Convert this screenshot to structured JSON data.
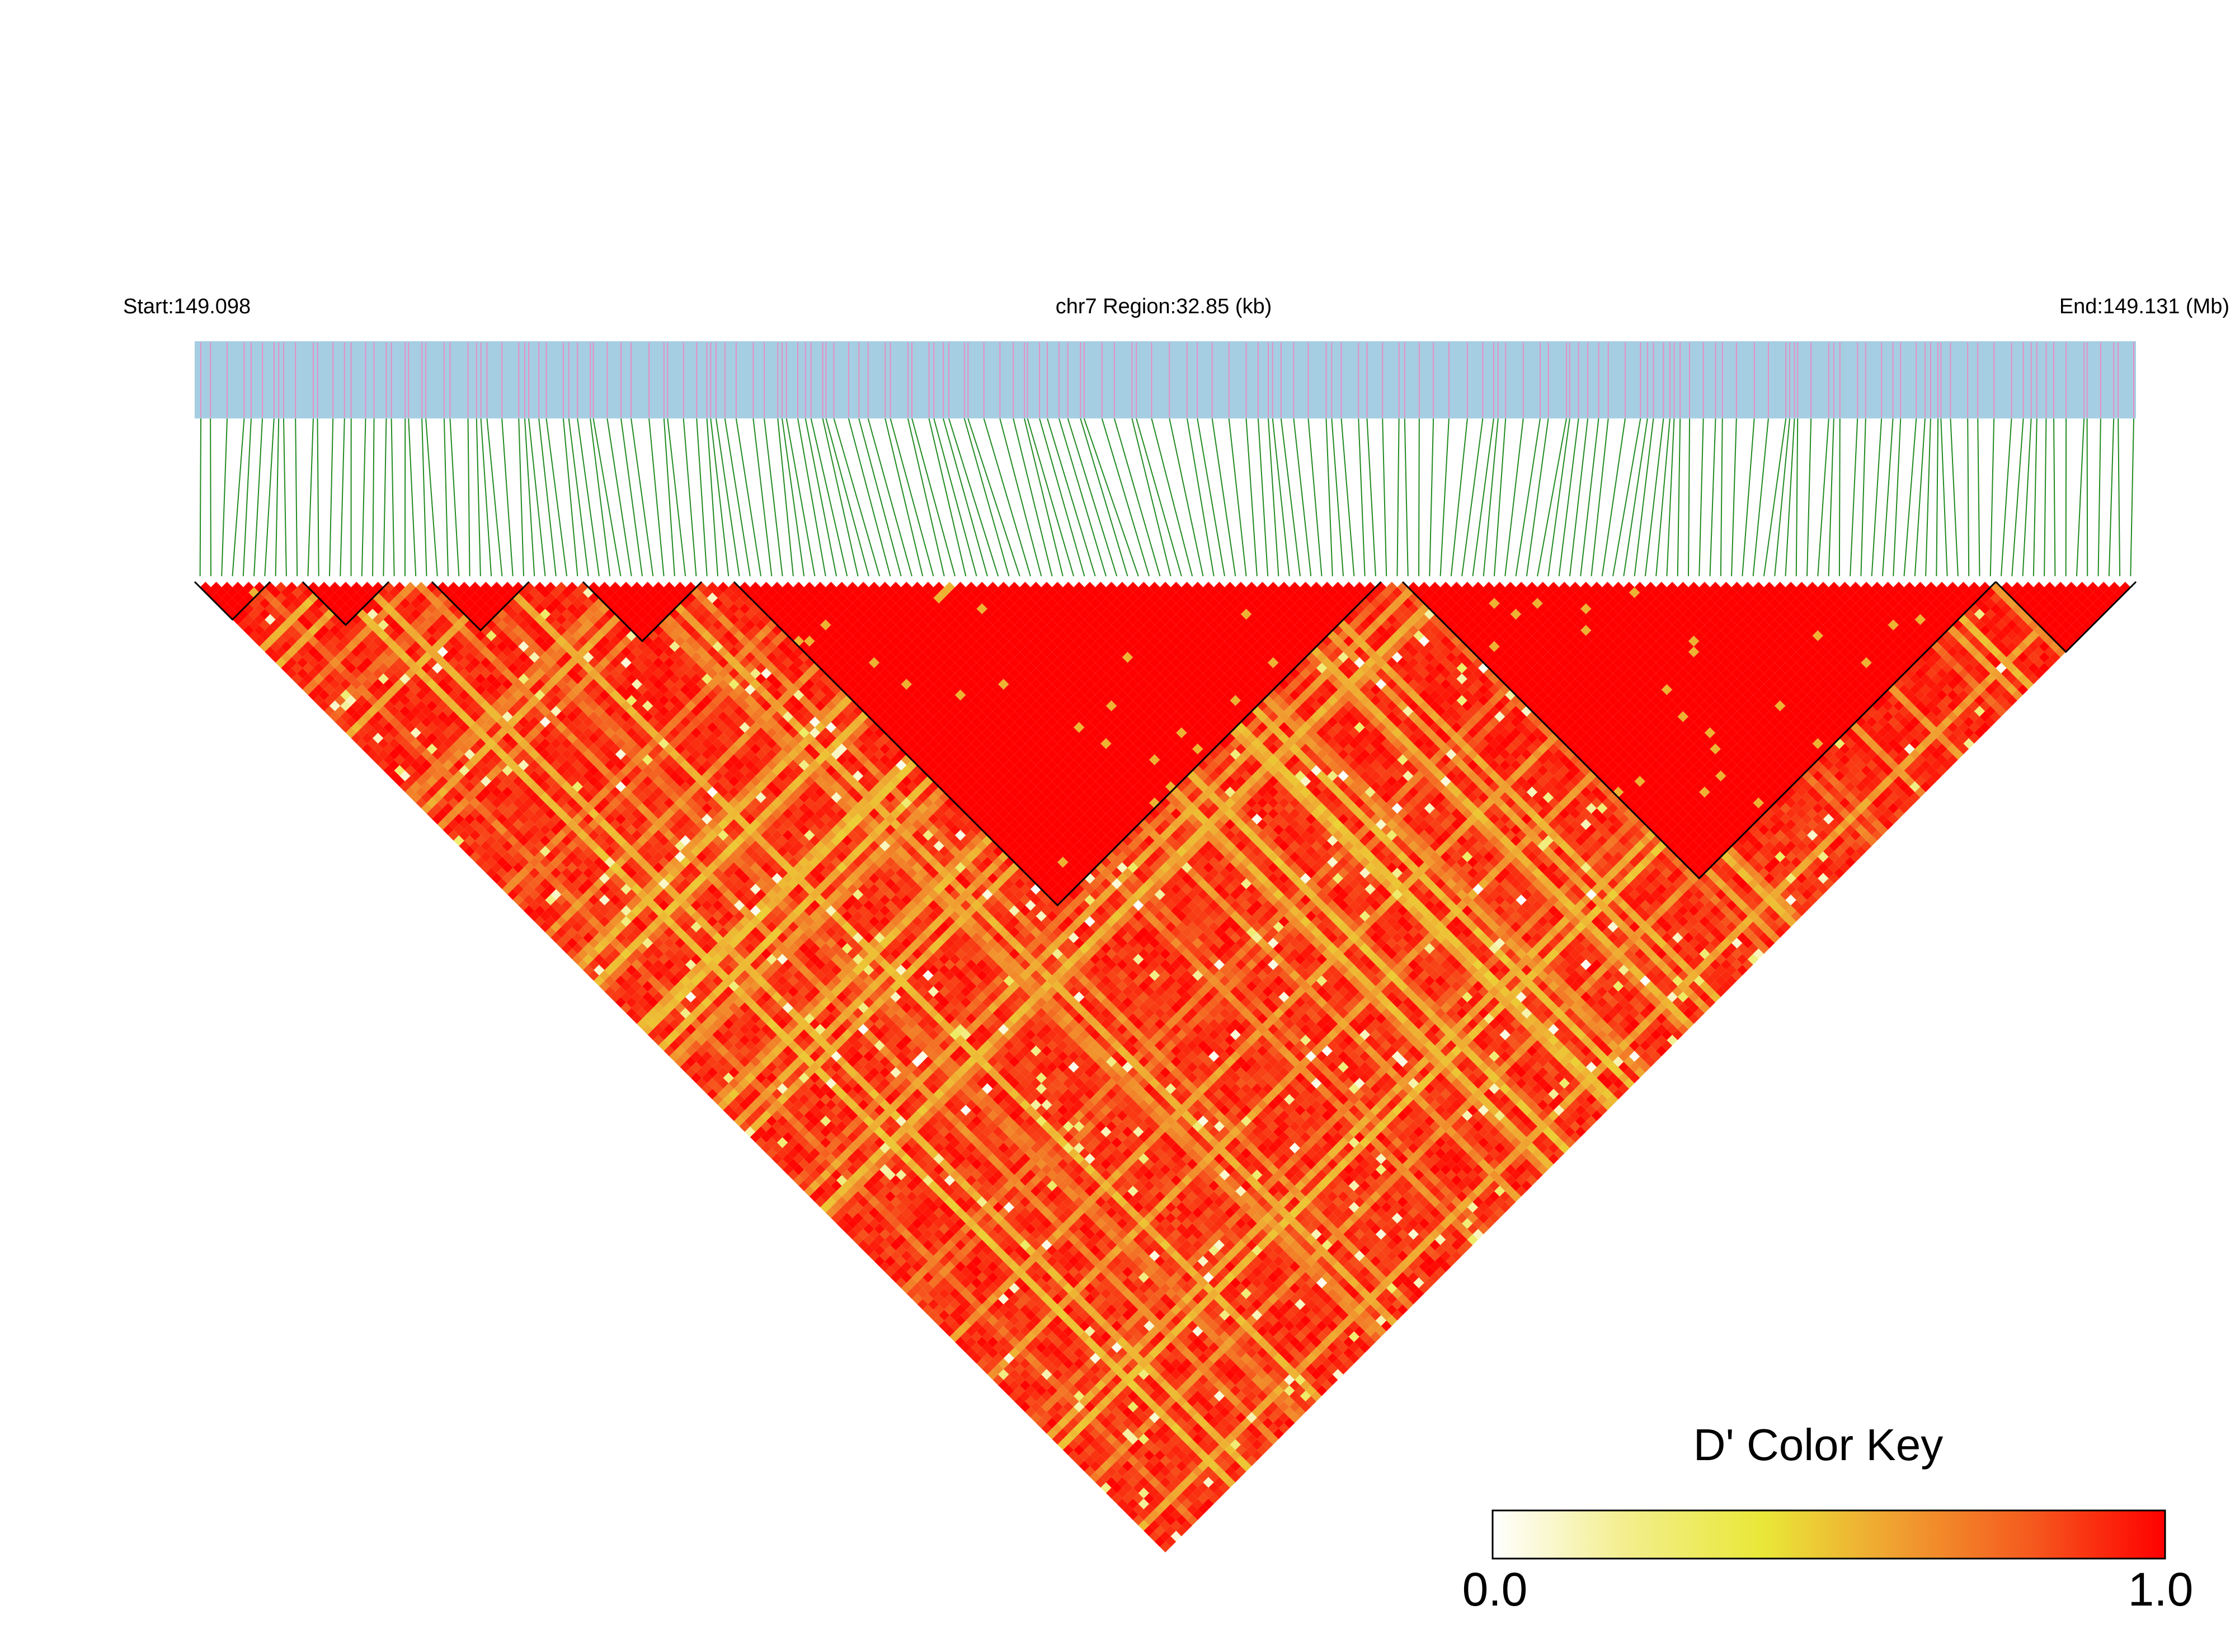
{
  "header": {
    "start_label": "Start:149.098",
    "region_label": "chr7 Region:32.85 (kb)",
    "end_label": "End:149.131 (Mb)"
  },
  "colors": {
    "track_background": "#a6cee3",
    "snp_tick": "#e58fc3",
    "connector": "#228B22",
    "high_ld": "#ff0000",
    "low_ld": "#ffffff",
    "mid_ld": "#e8e838",
    "block_outline": "#000000"
  },
  "chart_data": {
    "type": "heatmap",
    "chromosome": "chr7",
    "region_start_mb": 149.098,
    "region_end_mb": 149.131,
    "region_length_kb": 32.85,
    "n_snps": 180,
    "metric": "D'",
    "color_scale": {
      "min": 0.0,
      "max": 1.0,
      "stops": [
        "#ffffff",
        "#f3ee8c",
        "#e9e838",
        "#f0a030",
        "#f55a1e",
        "#ff0000"
      ]
    },
    "ld_blocks": [
      {
        "snp_start": 0,
        "snp_end": 7
      },
      {
        "snp_start": 10,
        "snp_end": 18
      },
      {
        "snp_start": 22,
        "snp_end": 31
      },
      {
        "snp_start": 36,
        "snp_end": 47
      },
      {
        "snp_start": 50,
        "snp_end": 110
      },
      {
        "snp_start": 112,
        "snp_end": 167
      },
      {
        "snp_start": 167,
        "snp_end": 180
      }
    ],
    "legend": {
      "title": "D' Color Key",
      "min_label": "0.0",
      "max_label": "1.0"
    }
  }
}
